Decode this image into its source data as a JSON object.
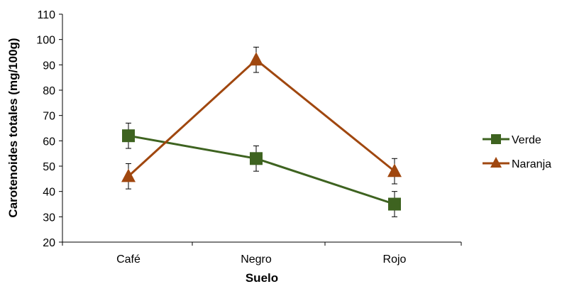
{
  "chart_data": {
    "type": "line",
    "title": "",
    "xlabel": "Suelo",
    "ylabel": "Carotenoides totales (mg/100g)",
    "categories": [
      "Café",
      "Negro",
      "Rojo"
    ],
    "ylim": [
      20,
      110
    ],
    "yticks": [
      "20",
      "30",
      "40",
      "50",
      "60",
      "70",
      "80",
      "90",
      "100",
      "110"
    ],
    "grid": false,
    "legend_position": "right",
    "series": [
      {
        "name": "Verde",
        "marker": "square",
        "color": "#3e6320",
        "values": [
          62,
          53,
          35
        ],
        "error": [
          5,
          5,
          5
        ]
      },
      {
        "name": "Naranja",
        "marker": "triangle",
        "color": "#a0470f",
        "values": [
          46,
          92,
          48
        ],
        "error": [
          5,
          5,
          5
        ]
      }
    ]
  }
}
